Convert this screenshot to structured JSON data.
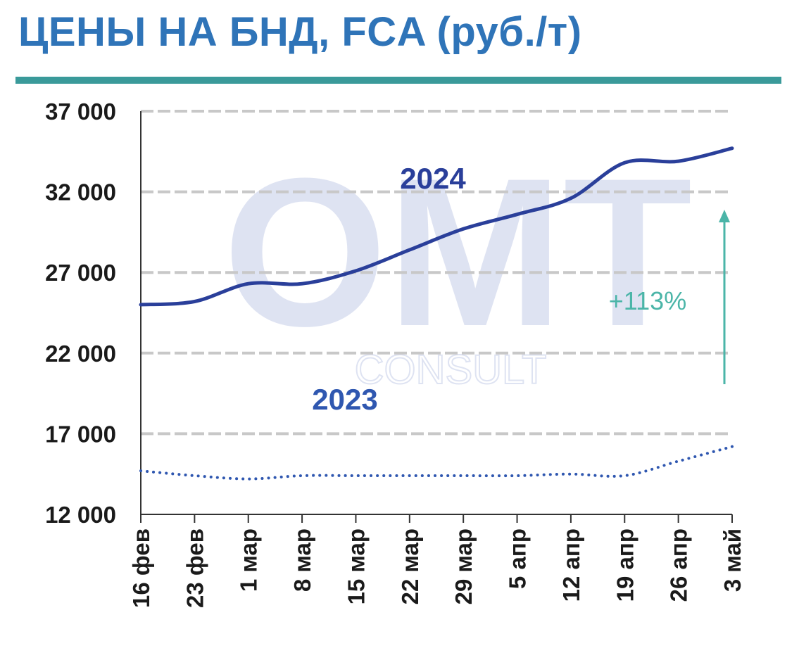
{
  "title": "ЦЕНЫ НА БНД, FCA (руб./т)",
  "watermark": {
    "logo": "OMT",
    "sub": "CONSULT"
  },
  "colors": {
    "title": "#2f74b8",
    "rule": "#3a9a9a",
    "series_2024": "#2a3f9a",
    "series_2023": "#2f57b0",
    "label_2023": "#2f57b0",
    "annotation": "#4bb5a8",
    "grid": "#c8c8c8",
    "axis": "#333333"
  },
  "chart_data": {
    "type": "line",
    "categories": [
      "16 фев",
      "23 фев",
      "1 мар",
      "8 мар",
      "15 мар",
      "22 мар",
      "29 мар",
      "5 апр",
      "12 апр",
      "19 апр",
      "26 апр",
      "3 май"
    ],
    "ylim": [
      12000,
      37000
    ],
    "yticks": [
      12000,
      17000,
      22000,
      27000,
      32000,
      37000
    ],
    "ytick_labels": [
      "12 000",
      "17 000",
      "22 000",
      "27 000",
      "32 000",
      "37 000"
    ],
    "grid": true,
    "series": [
      {
        "name": "2024",
        "style": "solid",
        "values": [
          25000,
          25200,
          26300,
          26300,
          27100,
          28400,
          29700,
          30600,
          31600,
          33800,
          33900,
          34700
        ]
      },
      {
        "name": "2023",
        "style": "dotted",
        "values": [
          14700,
          14400,
          14200,
          14400,
          14400,
          14400,
          14400,
          14400,
          14500,
          14400,
          15300,
          16200
        ]
      }
    ],
    "annotation": {
      "text": "+113%"
    }
  }
}
